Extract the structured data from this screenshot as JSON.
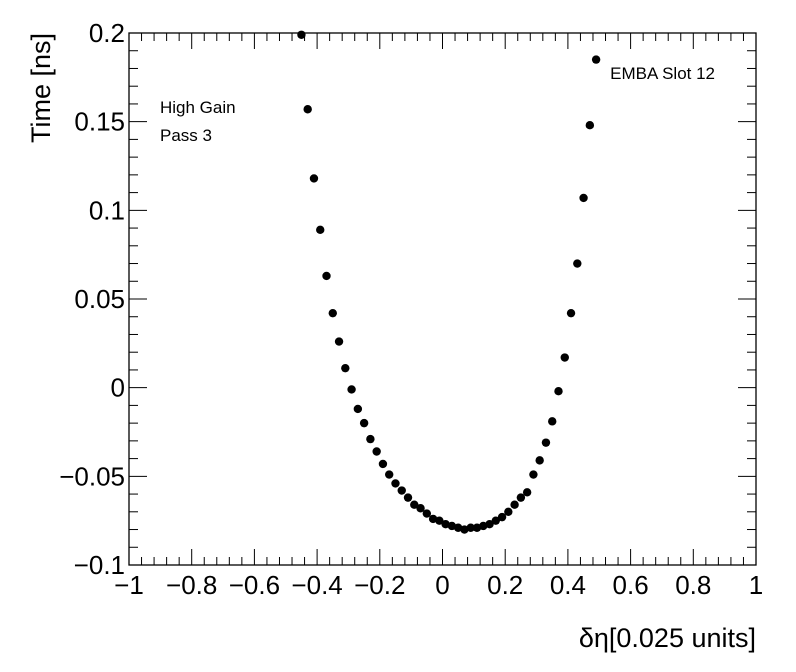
{
  "chart_data": {
    "type": "scatter",
    "xlabel": "δη[0.025 units]",
    "ylabel": "Time [ns]",
    "xlim": [
      -1,
      1
    ],
    "ylim": [
      -0.1,
      0.2
    ],
    "xticks": [
      -1,
      -0.8,
      -0.6,
      -0.4,
      -0.2,
      0,
      0.2,
      0.4,
      0.6,
      0.8,
      1
    ],
    "xtick_labels": [
      "−1",
      "−0.8",
      "−0.6",
      "−0.4",
      "−0.2",
      "0",
      "0.2",
      "0.4",
      "0.6",
      "0.8",
      "1"
    ],
    "yticks": [
      -0.1,
      -0.05,
      0,
      0.05,
      0.1,
      0.15,
      0.2
    ],
    "ytick_labels": [
      "−0.1",
      "−0.05",
      "0",
      "0.05",
      "0.1",
      "0.15",
      "0.2"
    ],
    "grid": false,
    "annotations": {
      "top_left": [
        "High Gain",
        "Pass 3"
      ],
      "top_right": "EMBA Slot 12"
    },
    "series": [
      {
        "marker": "circle",
        "color": "#000000",
        "x": [
          -0.45,
          -0.43,
          -0.41,
          -0.39,
          -0.37,
          -0.35,
          -0.33,
          -0.31,
          -0.29,
          -0.27,
          -0.25,
          -0.23,
          -0.21,
          -0.19,
          -0.17,
          -0.15,
          -0.13,
          -0.11,
          -0.09,
          -0.07,
          -0.05,
          -0.03,
          -0.01,
          0.01,
          0.03,
          0.05,
          0.07,
          0.09,
          0.11,
          0.13,
          0.15,
          0.17,
          0.19,
          0.21,
          0.23,
          0.25,
          0.27,
          0.29,
          0.31,
          0.33,
          0.35,
          0.37,
          0.39,
          0.41,
          0.43,
          0.45,
          0.47,
          0.49
        ],
        "y": [
          0.199,
          0.157,
          0.118,
          0.089,
          0.063,
          0.042,
          0.026,
          0.011,
          -0.001,
          -0.012,
          -0.02,
          -0.029,
          -0.036,
          -0.043,
          -0.049,
          -0.054,
          -0.058,
          -0.062,
          -0.066,
          -0.068,
          -0.071,
          -0.074,
          -0.075,
          -0.077,
          -0.078,
          -0.079,
          -0.08,
          -0.079,
          -0.079,
          -0.078,
          -0.077,
          -0.075,
          -0.073,
          -0.07,
          -0.066,
          -0.062,
          -0.059,
          -0.049,
          -0.041,
          -0.031,
          -0.019,
          -0.002,
          0.017,
          0.042,
          0.07,
          0.107,
          0.148,
          0.185
        ]
      }
    ]
  }
}
